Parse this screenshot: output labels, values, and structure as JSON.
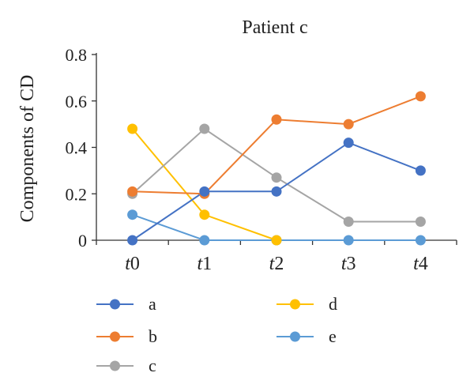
{
  "chart_data": {
    "type": "line",
    "title": "Patient c",
    "xlabel": "",
    "ylabel": "Components of CD",
    "categories": [
      "t0",
      "t1",
      "t2",
      "t3",
      "t4"
    ],
    "category_labels": [
      {
        "prefix": "t",
        "suffix": "0"
      },
      {
        "prefix": "t",
        "suffix": "1"
      },
      {
        "prefix": "t",
        "suffix": "2"
      },
      {
        "prefix": "t",
        "suffix": "3"
      },
      {
        "prefix": "t",
        "suffix": "4"
      }
    ],
    "ylim": [
      0,
      0.8
    ],
    "yticks": [
      0,
      0.2,
      0.4,
      0.6,
      0.8
    ],
    "ytick_labels": [
      "0",
      "0.2",
      "0.4",
      "0.6",
      "0.8"
    ],
    "grid": false,
    "legend_position": "bottom",
    "series": [
      {
        "name": "a",
        "color": "#4472C4",
        "values": [
          0.0,
          0.21,
          0.21,
          0.42,
          0.3
        ]
      },
      {
        "name": "b",
        "color": "#ED7D31",
        "values": [
          0.21,
          0.2,
          0.52,
          0.5,
          0.62
        ]
      },
      {
        "name": "c",
        "color": "#A5A5A5",
        "values": [
          0.2,
          0.48,
          0.27,
          0.08,
          0.08
        ]
      },
      {
        "name": "d",
        "color": "#FFC000",
        "values": [
          0.48,
          0.11,
          0.0,
          null,
          null
        ]
      },
      {
        "name": "e",
        "color": "#5B9BD5",
        "values": [
          0.11,
          0.0,
          0.0,
          0.0,
          0.0
        ]
      }
    ]
  }
}
